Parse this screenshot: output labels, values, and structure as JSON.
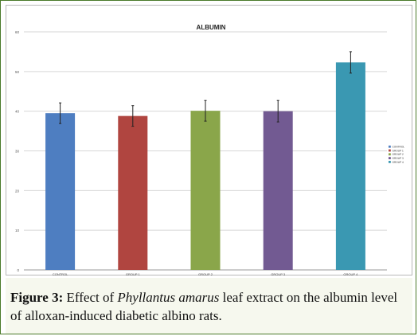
{
  "figure": {
    "label": "Figure 3:",
    "text_before": " Effect of ",
    "species": "Phyllantus amarus",
    "text_after": " leaf extract on the albumin level of alloxan-induced diabetic albino rats."
  },
  "chart_data": {
    "type": "bar",
    "title": "ALBUMIN",
    "xlabel": "",
    "ylabel": "",
    "categories": [
      "CONTROL",
      "GROUP 1",
      "GROUP 2",
      "GROUP 3",
      "GROUP 4"
    ],
    "values": [
      39.5,
      38.8,
      40.1,
      40.0,
      52.3
    ],
    "errors": [
      2.6,
      2.6,
      2.6,
      2.7,
      2.7
    ],
    "colors": [
      "#4e7ec1",
      "#b04540",
      "#8aa64a",
      "#725a92",
      "#3a98b2"
    ],
    "ylim": [
      0,
      60
    ],
    "yticks": [
      0,
      10,
      20,
      30,
      40,
      50,
      60
    ],
    "grid": true,
    "legend": {
      "position": "right",
      "entries": [
        "CONTROL",
        "GROUP 1",
        "GROUP 2",
        "GROUP 3",
        "GROUP 4"
      ]
    }
  }
}
